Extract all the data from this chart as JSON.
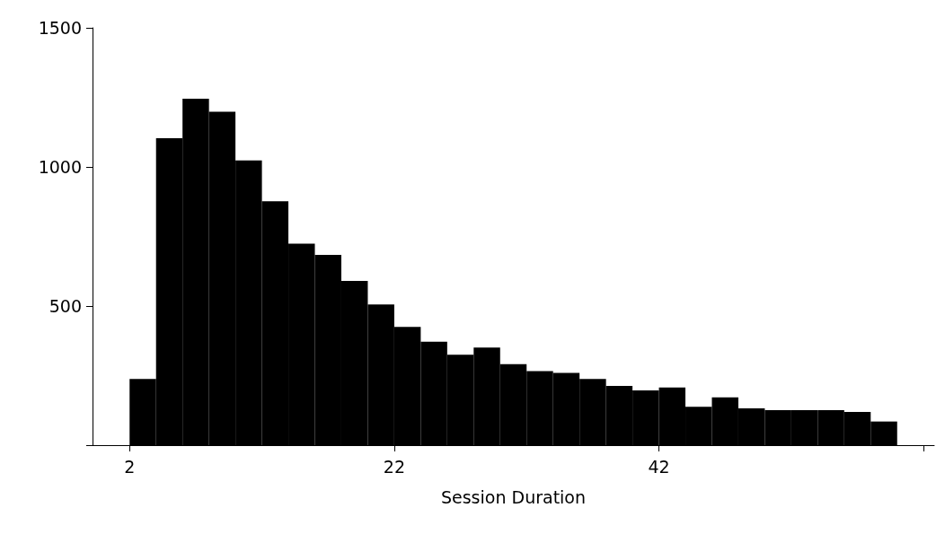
{
  "chart_data": {
    "type": "histogram",
    "xlabel": "Session Duration",
    "bins": [
      2,
      4,
      6,
      8,
      10,
      12,
      14,
      16,
      18,
      20,
      22,
      24,
      26,
      28,
      30,
      32,
      34,
      36,
      38,
      40,
      42,
      44,
      46,
      48,
      50,
      52,
      54,
      56,
      58,
      60
    ],
    "values": [
      238,
      1103,
      1245,
      1198,
      1023,
      877,
      724,
      684,
      590,
      506,
      425,
      372,
      325,
      351,
      291,
      266,
      260,
      238,
      213,
      197,
      207,
      138,
      172,
      132,
      126,
      126,
      126,
      119,
      85
    ],
    "color": "#000000",
    "xlim": [
      -0.8,
      62.8
    ],
    "xticks": [
      2,
      22,
      42,
      {
        "value": 62,
        "label": null
      }
    ],
    "ylim": [
      0,
      1500
    ],
    "yticks": [
      {
        "value": 0,
        "label": null
      },
      500,
      1000,
      1500
    ],
    "grid": false
  }
}
